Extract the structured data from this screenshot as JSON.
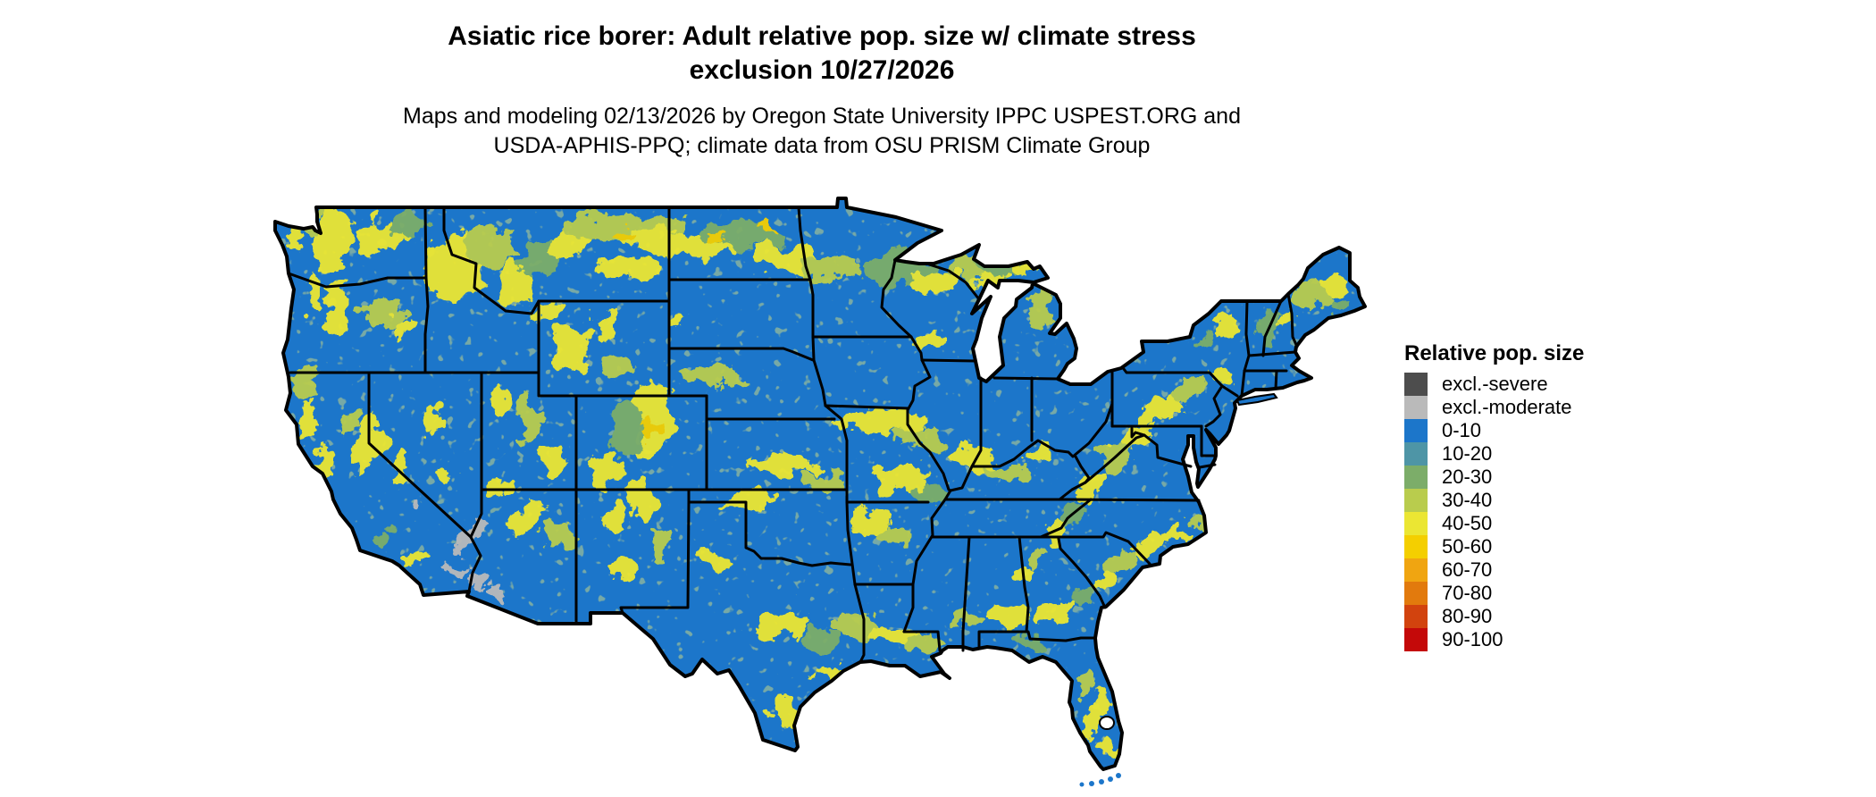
{
  "header": {
    "title_line1": "Asiatic rice borer: Adult relative pop. size w/ climate stress",
    "title_line2": "exclusion 10/27/2026",
    "subtitle_line1": "Maps and modeling 02/13/2026 by Oregon State University IPPC USPEST.ORG and",
    "subtitle_line2": "USDA-APHIS-PPQ; climate data from OSU PRISM Climate Group"
  },
  "legend": {
    "title": "Relative pop. size",
    "items": [
      {
        "label": "excl.-severe",
        "color": "#4D4D4D"
      },
      {
        "label": "excl.-moderate",
        "color": "#BABABA"
      },
      {
        "label": "0-10",
        "color": "#1C76CA"
      },
      {
        "label": "10-20",
        "color": "#4E95A6"
      },
      {
        "label": "20-30",
        "color": "#7CAD69"
      },
      {
        "label": "30-40",
        "color": "#B9CC4D"
      },
      {
        "label": "40-50",
        "color": "#EBE633"
      },
      {
        "label": "50-60",
        "color": "#F4CF00"
      },
      {
        "label": "60-70",
        "color": "#F0A511"
      },
      {
        "label": "70-80",
        "color": "#E27A0D"
      },
      {
        "label": "80-90",
        "color": "#D2430E"
      },
      {
        "label": "90-100",
        "color": "#C40909"
      }
    ]
  },
  "map": {
    "region": "Contiguous United States",
    "base_fill": "#1C76CA",
    "state_border_color": "#000000",
    "background": "#FFFFFF",
    "dominant_class": "0-10",
    "excluded_area_color": "#BABABA",
    "texture_classes": [
      "10-20",
      "20-30",
      "30-40",
      "40-50",
      "50-60"
    ]
  }
}
